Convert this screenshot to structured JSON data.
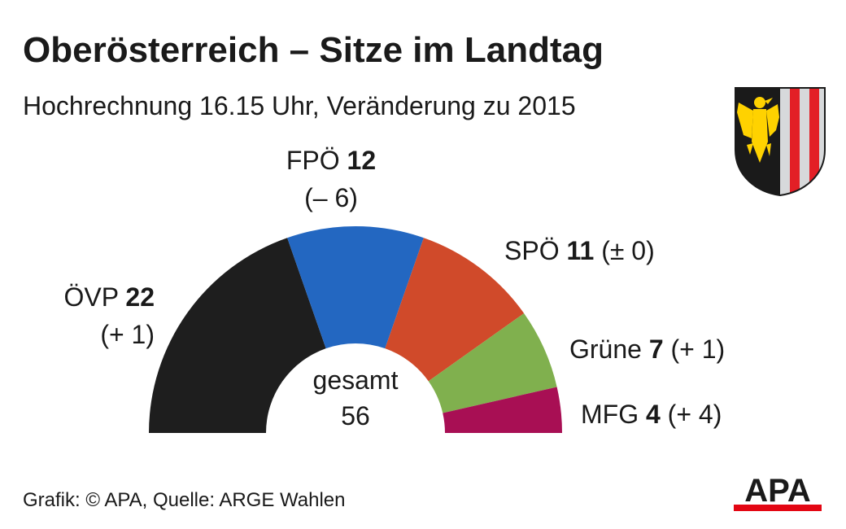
{
  "title": "Oberösterreich – Sitze im Landtag",
  "subtitle": "Hochrechnung 16.15 Uhr, Veränderung zu 2015",
  "source": "Grafik: © APA, Quelle: ARGE Wahlen",
  "logo_text": "APA",
  "colors": {
    "apa_red": "#e30613",
    "coat_red": "#e31f26",
    "coat_silver": "#d7d9db",
    "coat_gold": "#ffd200",
    "coat_black": "#1a1a1a"
  },
  "chart_data": {
    "type": "pie",
    "subtype": "half-donut (parliament seat chart)",
    "title": "Oberösterreich – Sitze im Landtag",
    "subtitle": "Hochrechnung 16.15 Uhr, Veränderung zu 2015",
    "total_label": "gesamt",
    "total": 56,
    "series": [
      {
        "name": "ÖVP",
        "value": 22,
        "change": "(+ 1)",
        "color": "#1e1e1e"
      },
      {
        "name": "FPÖ",
        "value": 12,
        "change": "(– 6)",
        "color": "#2367c1"
      },
      {
        "name": "SPÖ",
        "value": 11,
        "change": "(± 0)",
        "color": "#d04a2a"
      },
      {
        "name": "Grüne",
        "value": 7,
        "change": "(+ 1)",
        "color": "#80b04e"
      },
      {
        "name": "MFG",
        "value": 4,
        "change": "(+ 4)",
        "color": "#a80f54"
      }
    ]
  }
}
